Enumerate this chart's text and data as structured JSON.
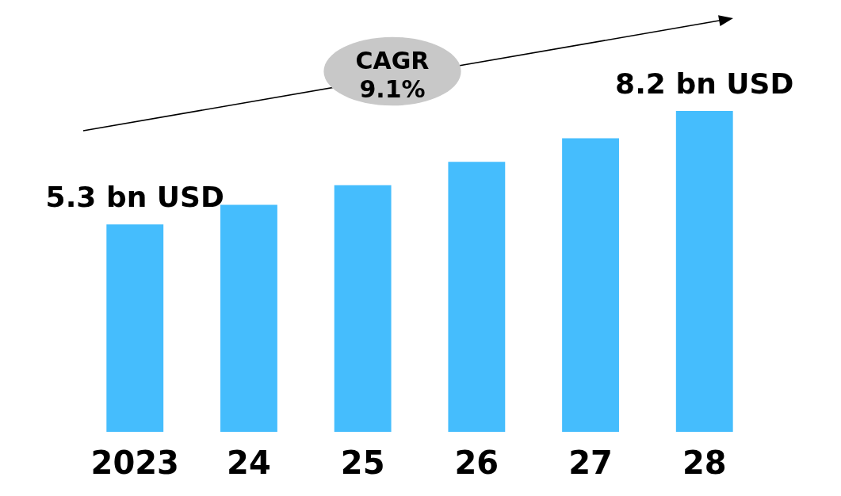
{
  "chart_data": {
    "type": "bar",
    "categories": [
      "2023",
      "24",
      "25",
      "26",
      "27",
      "28"
    ],
    "values": [
      5.3,
      5.8,
      6.3,
      6.9,
      7.5,
      8.2
    ],
    "value_labels": [
      "5.3 bn USD",
      null,
      null,
      null,
      null,
      "8.2 bn USD"
    ],
    "color": "#45bdfd",
    "tick_labels": "x",
    "grid": false,
    "annotations": [
      "CAGR 9.1%"
    ]
  }
}
